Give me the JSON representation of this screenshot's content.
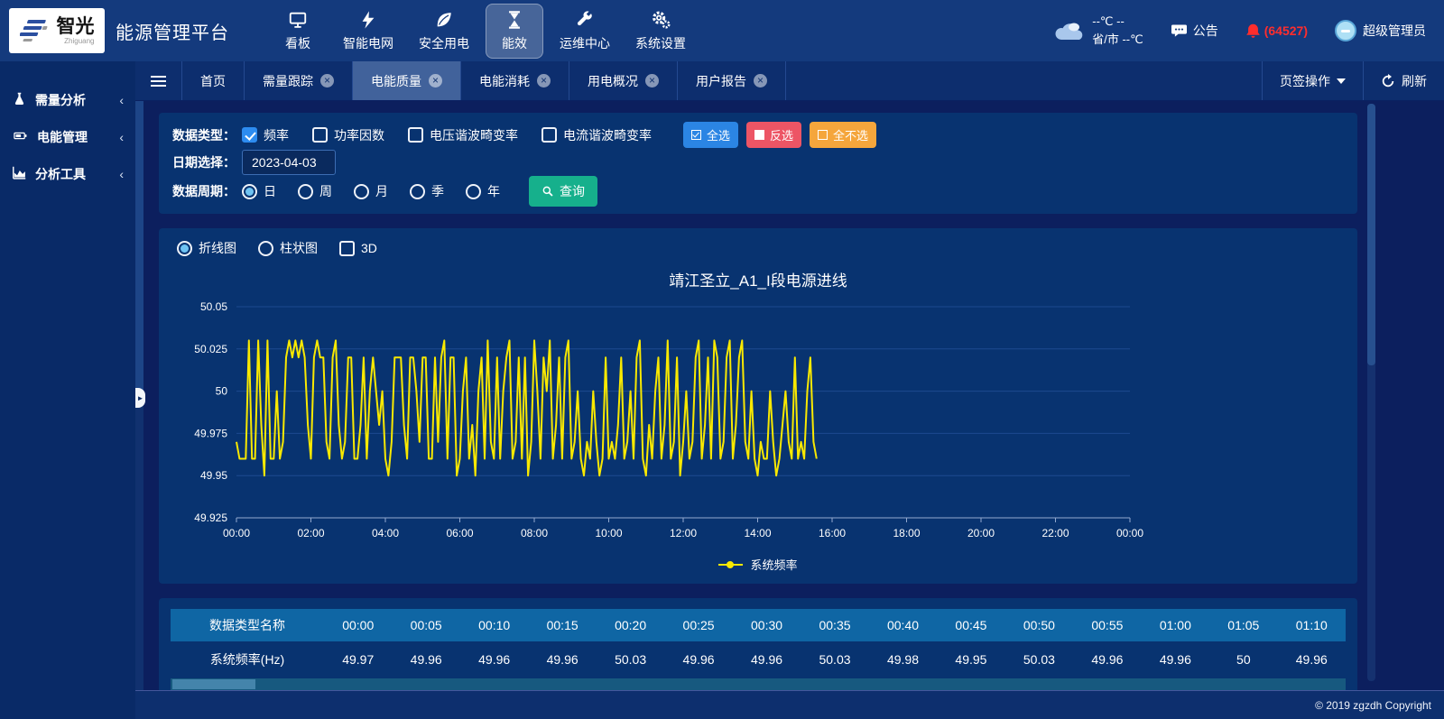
{
  "header": {
    "brand": {
      "name": "智光",
      "sub": "Zhiguang"
    },
    "title": "能源管理平台",
    "nav": [
      {
        "id": "dashboard",
        "label": "看板",
        "icon": "monitor-icon",
        "active": false
      },
      {
        "id": "smart-grid",
        "label": "智能电网",
        "icon": "lightning-icon",
        "active": false
      },
      {
        "id": "safe-power",
        "label": "安全用电",
        "icon": "leaf-icon",
        "active": false
      },
      {
        "id": "energy-efficiency",
        "label": "能效",
        "icon": "hourglass-icon",
        "active": true
      },
      {
        "id": "ops-center",
        "label": "运维中心",
        "icon": "wrench-icon",
        "active": false
      },
      {
        "id": "system-settings",
        "label": "系统设置",
        "icon": "gear-icon",
        "active": false
      }
    ],
    "weather": {
      "temp_line": "--℃ --",
      "city_line": "省/市 --℃"
    },
    "notice_label": "公告",
    "alarm_count": "(64527)",
    "user_name": "超级管理员"
  },
  "sidebar": {
    "items": [
      {
        "id": "demand-analysis",
        "label": "需量分析",
        "icon": "flask-icon"
      },
      {
        "id": "energy-management",
        "label": "电能管理",
        "icon": "battery-icon"
      },
      {
        "id": "analysis-tools",
        "label": "分析工具",
        "icon": "area-chart-icon"
      }
    ]
  },
  "tabbar": {
    "tabs": [
      {
        "label": "首页",
        "closable": false,
        "active": false
      },
      {
        "label": "需量跟踪",
        "closable": true,
        "active": false
      },
      {
        "label": "电能质量",
        "closable": true,
        "active": true
      },
      {
        "label": "电能消耗",
        "closable": true,
        "active": false
      },
      {
        "label": "用电概况",
        "closable": true,
        "active": false
      },
      {
        "label": "用户报告",
        "closable": true,
        "active": false
      }
    ],
    "menu_label": "页签操作",
    "refresh_label": "刷新"
  },
  "filters": {
    "type_label": "数据类型：",
    "types": [
      {
        "label": "频率",
        "checked": true
      },
      {
        "label": "功率因数",
        "checked": false
      },
      {
        "label": "电压谐波畸变率",
        "checked": false
      },
      {
        "label": "电流谐波畸变率",
        "checked": false
      }
    ],
    "select_buttons": [
      {
        "id": "select-all",
        "label": "全选",
        "color": "#2b85e4",
        "icon": "checked-square-icon"
      },
      {
        "id": "invert-select",
        "label": "反选",
        "color": "#ed5565",
        "icon": "filled-square-icon"
      },
      {
        "id": "select-none",
        "label": "全不选",
        "color": "#f5a63c",
        "icon": "empty-square-icon"
      }
    ],
    "date_label": "日期选择：",
    "date_value": "2023-04-03",
    "period_label": "数据周期：",
    "periods": [
      {
        "label": "日",
        "selected": true
      },
      {
        "label": "周",
        "selected": false
      },
      {
        "label": "月",
        "selected": false
      },
      {
        "label": "季",
        "selected": false
      },
      {
        "label": "年",
        "selected": false
      }
    ],
    "query_label": "查询"
  },
  "chart_panel": {
    "modes": [
      {
        "label": "折线图",
        "selected": true
      },
      {
        "label": "柱状图",
        "selected": false
      }
    ],
    "mode_3d": {
      "label": "3D",
      "checked": false
    }
  },
  "chart_data": {
    "type": "line",
    "title": "靖江圣立_A1_I段电源进线",
    "ylim": [
      49.925,
      50.05
    ],
    "yticks": [
      50.05,
      50.025,
      50,
      49.975,
      49.95,
      49.925
    ],
    "xticks": [
      "00:00",
      "02:00",
      "04:00",
      "06:00",
      "08:00",
      "10:00",
      "12:00",
      "14:00",
      "16:00",
      "18:00",
      "20:00",
      "22:00",
      "00:00"
    ],
    "x_total_hours": 24,
    "interval_minutes": 5,
    "start_time": "00:00",
    "grid": true,
    "legend_position": "bottom",
    "series": [
      {
        "name": "系统频率",
        "color": "#f9e900",
        "values": [
          49.97,
          49.96,
          49.96,
          49.96,
          50.03,
          49.96,
          49.96,
          50.03,
          49.98,
          49.95,
          50.03,
          49.96,
          49.96,
          50,
          49.96,
          49.97,
          50.02,
          50.03,
          50.02,
          50.03,
          50.02,
          50.03,
          50.02,
          49.98,
          49.96,
          50.02,
          50.03,
          50.02,
          50.02,
          49.97,
          49.96,
          50.02,
          50.03,
          49.98,
          49.96,
          49.97,
          50.02,
          50.02,
          49.96,
          49.96,
          49.98,
          50.02,
          49.96,
          50,
          50.02,
          50,
          49.98,
          50,
          49.96,
          49.95,
          49.97,
          50.02,
          50.02,
          50.02,
          49.98,
          49.96,
          50.02,
          50.02,
          50,
          49.97,
          50.02,
          50.02,
          49.96,
          49.96,
          50.02,
          49.97,
          50.02,
          50.03,
          49.96,
          50.02,
          50.02,
          49.95,
          49.96,
          50,
          50.02,
          49.96,
          49.98,
          49.95,
          50,
          50.02,
          49.96,
          50.03,
          49.97,
          49.96,
          50.02,
          49.96,
          50,
          50.02,
          50.03,
          49.96,
          49.97,
          50.02,
          49.96,
          50.02,
          49.95,
          49.97,
          50.03,
          50,
          49.96,
          50.02,
          50,
          50.03,
          49.96,
          49.98,
          50.02,
          49.96,
          50.02,
          50.03,
          49.96,
          49.97,
          50,
          49.96,
          49.95,
          49.97,
          49.96,
          50,
          49.97,
          49.95,
          49.96,
          50.02,
          49.96,
          49.97,
          49.96,
          49.98,
          50.02,
          49.96,
          49.97,
          50,
          49.96,
          50.02,
          50.03,
          49.96,
          49.95,
          49.98,
          49.96,
          50,
          50.02,
          49.96,
          49.98,
          50.03,
          49.96,
          49.97,
          50.02,
          49.95,
          49.97,
          50,
          49.96,
          49.97,
          50.02,
          50.03,
          49.96,
          49.98,
          50.02,
          49.96,
          50.03,
          50.02,
          49.96,
          49.97,
          50.02,
          50.03,
          49.96,
          49.98,
          50.02,
          50.03,
          49.97,
          49.96,
          50,
          49.96,
          49.95,
          49.97,
          49.96,
          49.96,
          50,
          49.97,
          49.95,
          49.96,
          49.98,
          50,
          49.97,
          49.96,
          50.02,
          49.96,
          49.97,
          49.96,
          50,
          50.02,
          49.97,
          49.96
        ]
      }
    ]
  },
  "table": {
    "headers": [
      "数据类型名称",
      "00:00",
      "00:05",
      "00:10",
      "00:15",
      "00:20",
      "00:25",
      "00:30",
      "00:35",
      "00:40",
      "00:45",
      "00:50",
      "00:55",
      "01:00",
      "01:05",
      "01:10"
    ],
    "rows": [
      [
        "系统频率(Hz)",
        "49.97",
        "49.96",
        "49.96",
        "49.96",
        "50.03",
        "49.96",
        "49.96",
        "50.03",
        "49.98",
        "49.95",
        "50.03",
        "49.96",
        "49.96",
        "50",
        "49.96"
      ]
    ]
  },
  "footer": {
    "copyright": "© 2019 zgzdh Copyright"
  }
}
